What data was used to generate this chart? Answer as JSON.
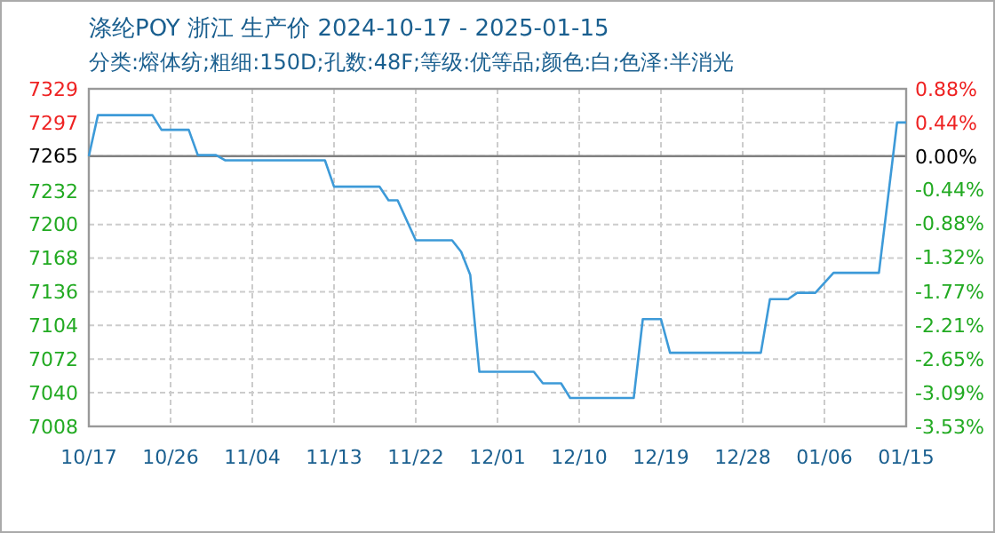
{
  "chart_data": {
    "type": "line",
    "title": "涤纶POY 浙江 生产价 2024-10-17 - 2025-01-15",
    "subtitle": "分类:熔体纺;粗细:150D;孔数:48F;等级:优等品;颜色:白;色泽:半消光",
    "x": [
      "2024-10-17",
      "2024-10-18",
      "2024-10-24",
      "2024-10-25",
      "2024-10-28",
      "2024-10-29",
      "2024-10-31",
      "2024-11-01",
      "2024-11-12",
      "2024-11-13",
      "2024-11-18",
      "2024-11-19",
      "2024-11-20",
      "2024-11-22",
      "2024-11-26",
      "2024-11-27",
      "2024-11-28",
      "2024-11-29",
      "2024-12-05",
      "2024-12-06",
      "2024-12-08",
      "2024-12-09",
      "2024-12-16",
      "2024-12-17",
      "2024-12-19",
      "2024-12-20",
      "2024-12-30",
      "2024-12-31",
      "2025-01-02",
      "2025-01-03",
      "2025-01-05",
      "2025-01-07",
      "2025-01-12",
      "2025-01-14",
      "2025-01-15"
    ],
    "series": [
      {
        "color": "#3d9ad8",
        "values": [
          7265,
          7304,
          7304,
          7290,
          7290,
          7266,
          7266,
          7261,
          7261,
          7236,
          7236,
          7223,
          7223,
          7185,
          7185,
          7174,
          7152,
          7060,
          7060,
          7049,
          7049,
          7035,
          7035,
          7110,
          7110,
          7078,
          7078,
          7129,
          7129,
          7135,
          7135,
          7154,
          7154,
          7297,
          7297
        ]
      }
    ],
    "xlim": [
      "2024-10-17",
      "2025-01-15"
    ],
    "xticks": [
      {
        "value": "2024-10-17",
        "label": "10/17"
      },
      {
        "value": "2024-10-26",
        "label": "10/26"
      },
      {
        "value": "2024-11-04",
        "label": "11/04"
      },
      {
        "value": "2024-11-13",
        "label": "11/13"
      },
      {
        "value": "2024-11-22",
        "label": "11/22"
      },
      {
        "value": "2024-12-01",
        "label": "12/01"
      },
      {
        "value": "2024-12-10",
        "label": "12/10"
      },
      {
        "value": "2024-12-19",
        "label": "12/19"
      },
      {
        "value": "2024-12-28",
        "label": "12/28"
      },
      {
        "value": "2025-01-06",
        "label": "01/06"
      },
      {
        "value": "2025-01-15",
        "label": "01/15"
      }
    ],
    "ylim": [
      7008,
      7329
    ],
    "yticks": [
      7008,
      7040,
      7072,
      7104,
      7136,
      7168,
      7200,
      7232,
      7265,
      7297,
      7329
    ],
    "y2lim": [
      -3.53,
      0.88
    ],
    "y2ticks": [
      {
        "value": -3.53,
        "label": "-3.53%"
      },
      {
        "value": -3.09,
        "label": "-3.09%"
      },
      {
        "value": -2.65,
        "label": "-2.65%"
      },
      {
        "value": -2.21,
        "label": "-2.21%"
      },
      {
        "value": -1.77,
        "label": "-1.77%"
      },
      {
        "value": -1.32,
        "label": "-1.32%"
      },
      {
        "value": -0.88,
        "label": "-0.88%"
      },
      {
        "value": -0.44,
        "label": "-0.44%"
      },
      {
        "value": 0,
        "label": "0.00%"
      },
      {
        "value": 0.44,
        "label": "0.44%"
      },
      {
        "value": 0.88,
        "label": "0.88%"
      }
    ],
    "ref_lines": [
      {
        "axis": "y",
        "value": 7265,
        "color": "#808080"
      }
    ],
    "grid": true,
    "line_style": "solid",
    "marker": "none"
  }
}
